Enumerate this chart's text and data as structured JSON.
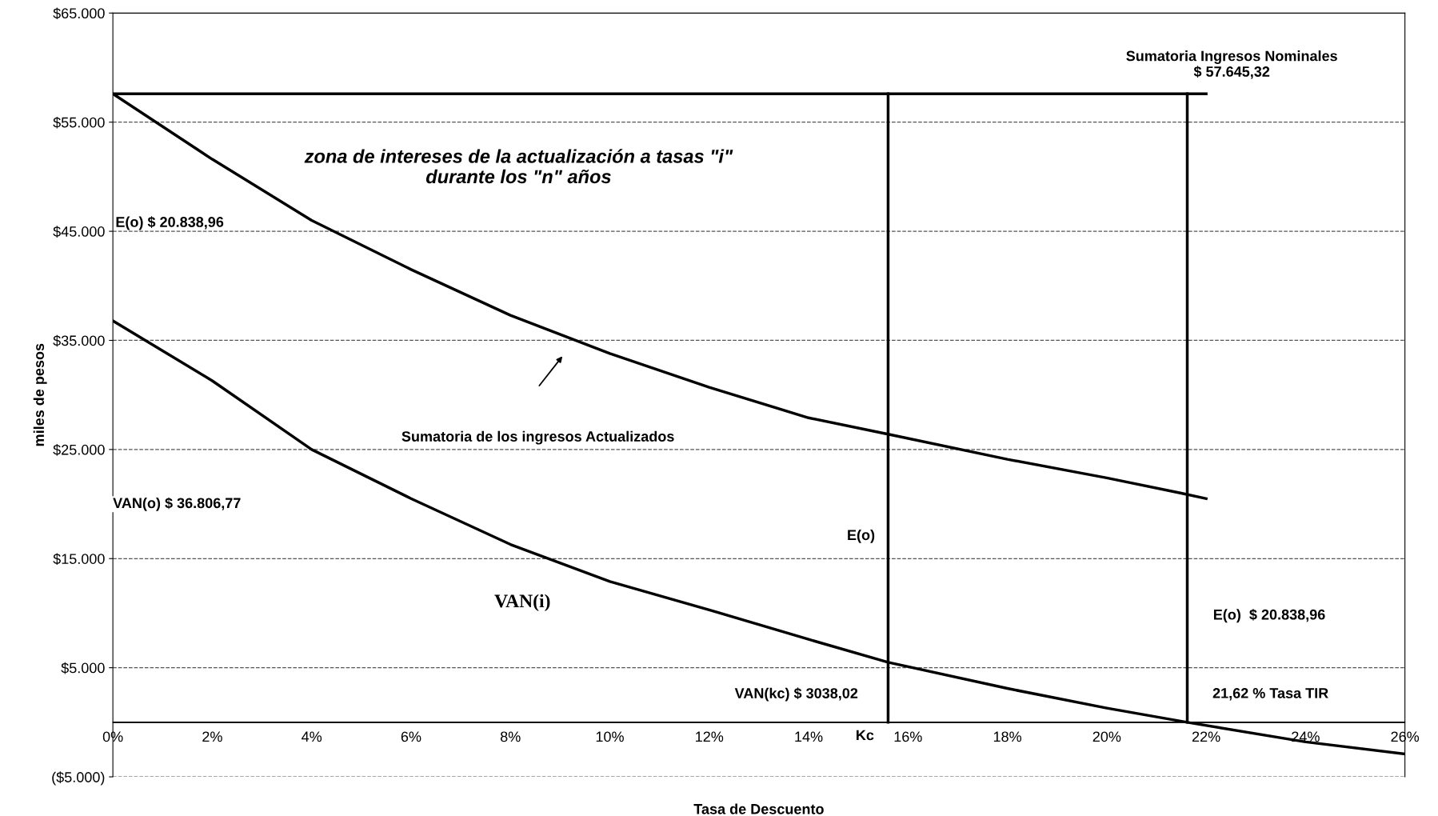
{
  "chart_data": {
    "type": "line",
    "xlabel": "Tasa de Descuento",
    "ylabel": "miles de pesos",
    "series": [
      {
        "color": "#000000",
        "x": [
          0,
          22
        ],
        "values": [
          57600,
          57600
        ]
      },
      {
        "color": "#000000",
        "x": [
          0,
          2,
          4,
          6,
          8,
          10,
          12,
          14,
          15.6,
          18,
          20,
          21.5,
          22
        ],
        "values": [
          57600,
          51600,
          46000,
          41500,
          37300,
          33800,
          30700,
          27900,
          26400,
          24100,
          22400,
          21000,
          20500
        ]
      },
      {
        "color": "#000000",
        "x": [
          0,
          2,
          4,
          6,
          8,
          10,
          12,
          14,
          15.6,
          18,
          20,
          21.62,
          24,
          26
        ],
        "values": [
          36800,
          31300,
          25000,
          20500,
          16300,
          12900,
          10300,
          7600,
          5500,
          3100,
          1300,
          0,
          -1800,
          -2900
        ]
      }
    ],
    "ref_lines": [
      {
        "axis": "y",
        "value": 0,
        "color": "#000000"
      },
      {
        "axis": "x",
        "value": 15.6,
        "color": "#000000"
      },
      {
        "axis": "x",
        "value": 21.62,
        "color": "#000000"
      }
    ],
    "xlim": [
      0,
      26
    ],
    "ylim": [
      -5000,
      65000
    ],
    "xticks": [
      {
        "value": 0,
        "label": "0%"
      },
      {
        "value": 2,
        "label": "2%"
      },
      {
        "value": 4,
        "label": "4%"
      },
      {
        "value": 6,
        "label": "6%"
      },
      {
        "value": 8,
        "label": "8%"
      },
      {
        "value": 10,
        "label": "10%"
      },
      {
        "value": 12,
        "label": "12%"
      },
      {
        "value": 14,
        "label": "14%"
      },
      {
        "value": 16,
        "label": "16%"
      },
      {
        "value": 18,
        "label": "18%"
      },
      {
        "value": 20,
        "label": "20%"
      },
      {
        "value": 22,
        "label": "22%"
      },
      {
        "value": 24,
        "label": "24%"
      },
      {
        "value": 26,
        "label": "26%"
      }
    ],
    "yticks": [
      {
        "value": -5000,
        "label": "($5.000)"
      },
      {
        "value": 5000,
        "label": "$5.000"
      },
      {
        "value": 15000,
        "label": "$15.000"
      },
      {
        "value": 25000,
        "label": "$25.000"
      },
      {
        "value": 35000,
        "label": "$35.000"
      },
      {
        "value": 45000,
        "label": "$45.000"
      },
      {
        "value": 55000,
        "label": "$55.000"
      },
      {
        "value": 65000,
        "label": "$65.000"
      }
    ],
    "grid": "y",
    "marker": "none",
    "line_style": "solid",
    "annotations": [
      "Sumatoria Ingresos Nominales\n$ 57.645,32",
      "zona de intereses de la actualización a tasas \"i\"\ndurante los \"n\" años",
      "E(o) $ 20.838,96",
      "Sumatoria de los ingresos Actualizados",
      "VAN(o) $ 36.806,77",
      "E(o)",
      "VAN(i)",
      "E(o)  $ 20.838,96",
      "VAN(kc) $ 3038,02",
      "21,62 % Tasa TIR",
      "Kc"
    ]
  }
}
